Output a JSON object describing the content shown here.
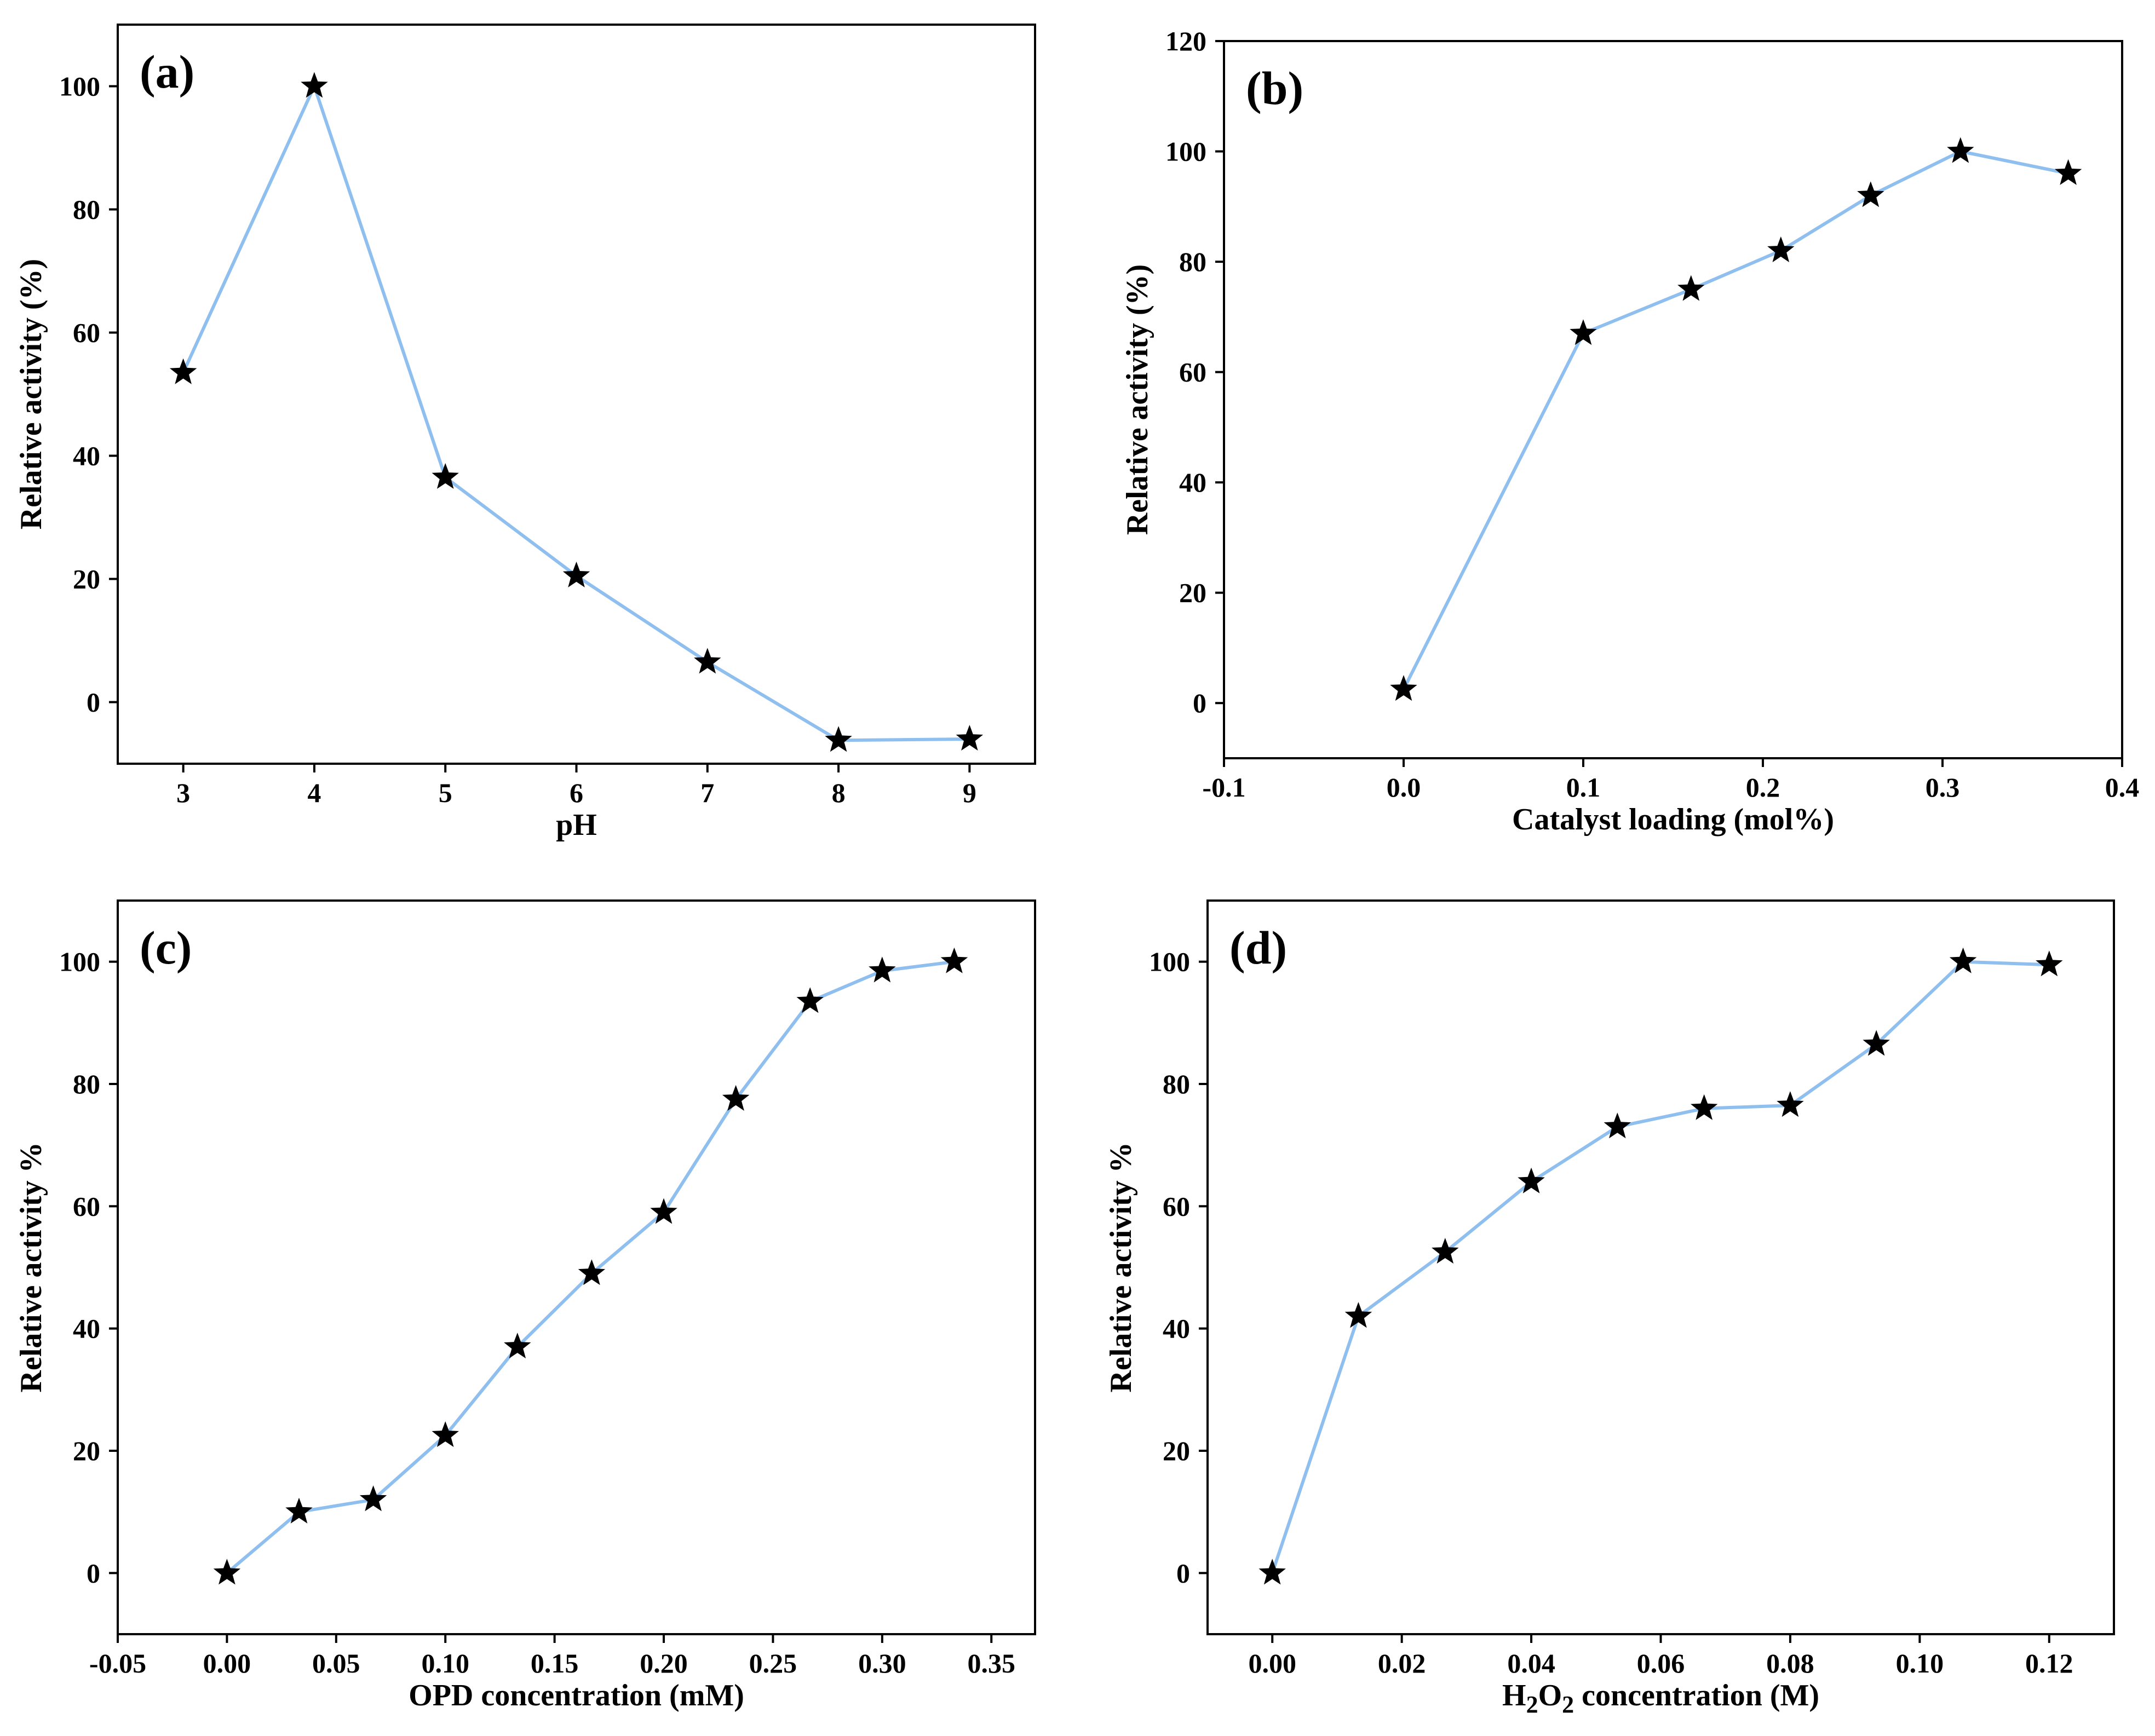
{
  "chart_data": [
    {
      "panel": "(a)",
      "type": "line",
      "title": "",
      "xlabel": "pH",
      "ylabel": "Relative activity (%)",
      "x": [
        3,
        4,
        5,
        6,
        7,
        8,
        9
      ],
      "y": [
        53.5,
        100,
        36.5,
        20.5,
        6.5,
        -6.2,
        -6.0
      ],
      "xlim": [
        2.5,
        9.5
      ],
      "ylim": [
        -10,
        110
      ],
      "xticks": [
        3,
        4,
        5,
        6,
        7,
        8,
        9
      ],
      "xtick_labels": [
        "3",
        "4",
        "5",
        "6",
        "7",
        "8",
        "9"
      ],
      "yticks": [
        0,
        20,
        40,
        60,
        80,
        100
      ],
      "ytick_labels": [
        "0",
        "20",
        "40",
        "60",
        "80",
        "100"
      ],
      "marker": "star",
      "line_color": "#8fbfef",
      "grid": false
    },
    {
      "panel": "(b)",
      "type": "line",
      "title": "",
      "xlabel": "Catalyst loading (mol%)",
      "ylabel": "Relative activity (%)",
      "x": [
        0.0,
        0.1,
        0.16,
        0.21,
        0.26,
        0.31,
        0.37
      ],
      "y": [
        2.5,
        67,
        75,
        82,
        92,
        100,
        96
      ],
      "xlim": [
        -0.1,
        0.4
      ],
      "ylim": [
        -10,
        120
      ],
      "xticks": [
        -0.1,
        0.0,
        0.1,
        0.2,
        0.3,
        0.4
      ],
      "xtick_labels": [
        "-0.1",
        "0.0",
        "0.1",
        "0.2",
        "0.3",
        "0.4"
      ],
      "yticks": [
        0,
        20,
        40,
        60,
        80,
        100,
        120
      ],
      "ytick_labels": [
        "0",
        "20",
        "40",
        "60",
        "80",
        "100",
        "120"
      ],
      "marker": "star",
      "line_color": "#8fbfef",
      "grid": false
    },
    {
      "panel": "(c)",
      "type": "line",
      "title": "",
      "xlabel": "OPD concentration (mM)",
      "ylabel": "Relative activity %",
      "x": [
        0.0,
        0.033,
        0.067,
        0.1,
        0.133,
        0.167,
        0.2,
        0.233,
        0.267,
        0.3,
        0.333
      ],
      "y": [
        0,
        10,
        12,
        22.5,
        37,
        49,
        59,
        77.5,
        93.5,
        98.5,
        100
      ],
      "xlim": [
        -0.05,
        0.37
      ],
      "ylim": [
        -10,
        110
      ],
      "xticks": [
        -0.05,
        0.0,
        0.05,
        0.1,
        0.15,
        0.2,
        0.25,
        0.3,
        0.35
      ],
      "xtick_labels": [
        "-0.05",
        "0.00",
        "0.05",
        "0.10",
        "0.15",
        "0.20",
        "0.25",
        "0.30",
        "0.35"
      ],
      "yticks": [
        0,
        20,
        40,
        60,
        80,
        100
      ],
      "ytick_labels": [
        "0",
        "20",
        "40",
        "60",
        "80",
        "100"
      ],
      "marker": "star",
      "line_color": "#8fbfef",
      "grid": false
    },
    {
      "panel": "(d)",
      "type": "line",
      "title": "",
      "xlabel": "H2O2 concentration (M)",
      "ylabel": "Relative activity %",
      "x": [
        0.0,
        0.0133,
        0.0267,
        0.04,
        0.0533,
        0.0667,
        0.08,
        0.0933,
        0.1067,
        0.12
      ],
      "y": [
        0,
        42,
        52.5,
        64,
        73,
        76,
        76.5,
        86.5,
        100,
        99.5
      ],
      "xlim": [
        -0.01,
        0.13
      ],
      "ylim": [
        -10,
        110
      ],
      "xticks": [
        0.0,
        0.02,
        0.04,
        0.06,
        0.08,
        0.1,
        0.12
      ],
      "xtick_labels": [
        "0.00",
        "0.02",
        "0.04",
        "0.06",
        "0.08",
        "0.10",
        "0.12"
      ],
      "yticks": [
        0,
        20,
        40,
        60,
        80,
        100
      ],
      "ytick_labels": [
        "0",
        "20",
        "40",
        "60",
        "80",
        "100"
      ],
      "marker": "star",
      "line_color": "#8fbfef",
      "grid": false
    }
  ]
}
